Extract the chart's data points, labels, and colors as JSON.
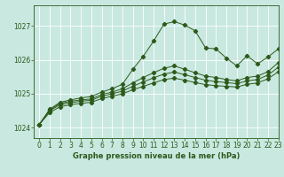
{
  "title": "Graphe pression niveau de la mer (hPa)",
  "background_color": "#c8e8e0",
  "grid_color": "#ffffff",
  "line_color": "#2d5a1b",
  "xlim": [
    -0.5,
    23
  ],
  "ylim": [
    1023.7,
    1027.6
  ],
  "yticks": [
    1024,
    1025,
    1026,
    1027
  ],
  "xticks": [
    0,
    1,
    2,
    3,
    4,
    5,
    6,
    7,
    8,
    9,
    10,
    11,
    12,
    13,
    14,
    15,
    16,
    17,
    18,
    19,
    20,
    21,
    22,
    23
  ],
  "series": [
    [
      1024.1,
      1024.55,
      1024.75,
      1024.82,
      1024.88,
      1024.92,
      1025.05,
      1025.15,
      1025.28,
      1025.72,
      1026.1,
      1026.55,
      1027.05,
      1027.12,
      1027.02,
      1026.85,
      1026.35,
      1026.32,
      1026.05,
      1025.82,
      1026.12,
      1025.88,
      1026.08,
      1026.32
    ],
    [
      1024.1,
      1024.52,
      1024.72,
      1024.78,
      1024.82,
      1024.85,
      1024.98,
      1025.05,
      1025.15,
      1025.32,
      1025.48,
      1025.62,
      1025.75,
      1025.82,
      1025.72,
      1025.62,
      1025.52,
      1025.48,
      1025.42,
      1025.38,
      1025.48,
      1025.52,
      1025.65,
      1025.92
    ],
    [
      1024.1,
      1024.5,
      1024.68,
      1024.74,
      1024.78,
      1024.81,
      1024.93,
      1025.0,
      1025.08,
      1025.22,
      1025.35,
      1025.47,
      1025.58,
      1025.64,
      1025.56,
      1025.48,
      1025.4,
      1025.36,
      1025.33,
      1025.3,
      1025.38,
      1025.42,
      1025.55,
      1025.78
    ],
    [
      1024.1,
      1024.45,
      1024.62,
      1024.68,
      1024.72,
      1024.75,
      1024.86,
      1024.93,
      1025.0,
      1025.12,
      1025.22,
      1025.32,
      1025.42,
      1025.46,
      1025.4,
      1025.33,
      1025.27,
      1025.24,
      1025.22,
      1025.2,
      1025.28,
      1025.32,
      1025.44,
      1025.65
    ]
  ]
}
